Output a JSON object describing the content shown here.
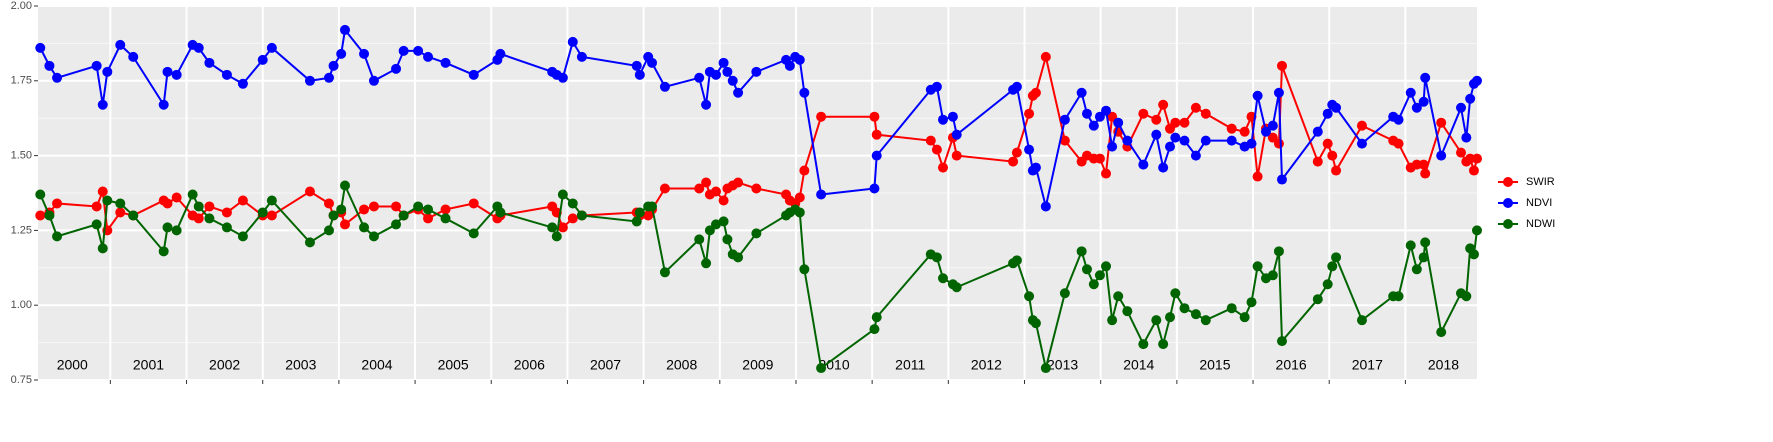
{
  "chart_data": {
    "type": "line",
    "x": [
      2000.08,
      2000.2,
      2000.3,
      2000.82,
      2000.9,
      2000.96,
      2001.13,
      2001.3,
      2001.7,
      2001.75,
      2001.87,
      2002.08,
      2002.16,
      2002.3,
      2002.53,
      2002.74,
      2003.0,
      2003.12,
      2003.62,
      2003.87,
      2003.93,
      2004.03,
      2004.08,
      2004.33,
      2004.46,
      2004.75,
      2004.85,
      2005.04,
      2005.17,
      2005.4,
      2005.77,
      2006.08,
      2006.12,
      2006.8,
      2006.86,
      2006.94,
      2007.07,
      2007.19,
      2007.91,
      2007.95,
      2008.06,
      2008.11,
      2008.28,
      2008.73,
      2008.82,
      2008.87,
      2008.95,
      2009.05,
      2009.1,
      2009.17,
      2009.24,
      2009.48,
      2009.87,
      2009.92,
      2009.99,
      2010.05,
      2010.11,
      2010.33,
      2011.03,
      2011.06,
      2011.77,
      2011.85,
      2011.93,
      2012.06,
      2012.11,
      2012.85,
      2012.9,
      2013.06,
      2013.11,
      2013.15,
      2013.28,
      2013.53,
      2013.75,
      2013.82,
      2013.91,
      2013.99,
      2014.07,
      2014.15,
      2014.23,
      2014.35,
      2014.56,
      2014.73,
      2014.82,
      2014.91,
      2014.98,
      2015.1,
      2015.25,
      2015.38,
      2015.72,
      2015.89,
      2015.98,
      2016.06,
      2016.17,
      2016.26,
      2016.34,
      2016.38,
      2016.85,
      2016.98,
      2017.04,
      2017.09,
      2017.43,
      2017.84,
      2017.91,
      2018.07,
      2018.15,
      2018.24,
      2018.26,
      2018.47,
      2018.73,
      2018.8,
      2018.85,
      2018.9,
      2018.94
    ],
    "series": [
      {
        "name": "SWIR",
        "color": "#ff0000",
        "values": [
          1.3,
          1.31,
          1.34,
          1.33,
          1.38,
          1.25,
          1.31,
          1.3,
          1.35,
          1.34,
          1.36,
          1.3,
          1.29,
          1.33,
          1.31,
          1.35,
          1.3,
          1.3,
          1.38,
          1.34,
          1.3,
          1.31,
          1.27,
          1.32,
          1.33,
          1.33,
          1.3,
          1.32,
          1.29,
          1.32,
          1.34,
          1.29,
          1.3,
          1.33,
          1.31,
          1.26,
          1.29,
          1.3,
          1.31,
          1.3,
          1.3,
          1.32,
          1.39,
          1.39,
          1.41,
          1.37,
          1.38,
          1.35,
          1.39,
          1.4,
          1.41,
          1.39,
          1.37,
          1.35,
          1.34,
          1.36,
          1.45,
          1.63,
          1.63,
          1.57,
          1.55,
          1.52,
          1.46,
          1.56,
          1.5,
          1.48,
          1.51,
          1.64,
          1.7,
          1.71,
          1.83,
          1.55,
          1.48,
          1.5,
          1.49,
          1.49,
          1.44,
          1.63,
          1.58,
          1.53,
          1.64,
          1.62,
          1.67,
          1.59,
          1.61,
          1.61,
          1.66,
          1.64,
          1.59,
          1.58,
          1.63,
          1.43,
          1.59,
          1.56,
          1.54,
          1.8,
          1.48,
          1.54,
          1.5,
          1.45,
          1.6,
          1.55,
          1.54,
          1.46,
          1.47,
          1.47,
          1.44,
          1.61,
          1.51,
          1.48,
          1.49,
          1.45,
          1.49
        ]
      },
      {
        "name": "NDVI",
        "color": "#0000ff",
        "values": [
          1.86,
          1.8,
          1.76,
          1.8,
          1.67,
          1.78,
          1.87,
          1.83,
          1.67,
          1.78,
          1.77,
          1.87,
          1.86,
          1.81,
          1.77,
          1.74,
          1.82,
          1.86,
          1.75,
          1.76,
          1.8,
          1.84,
          1.92,
          1.84,
          1.75,
          1.79,
          1.85,
          1.85,
          1.83,
          1.81,
          1.77,
          1.82,
          1.84,
          1.78,
          1.77,
          1.76,
          1.88,
          1.83,
          1.8,
          1.77,
          1.83,
          1.81,
          1.73,
          1.76,
          1.67,
          1.78,
          1.77,
          1.81,
          1.78,
          1.75,
          1.71,
          1.78,
          1.82,
          1.8,
          1.83,
          1.82,
          1.71,
          1.37,
          1.39,
          1.5,
          1.72,
          1.73,
          1.62,
          1.63,
          1.57,
          1.72,
          1.73,
          1.52,
          1.45,
          1.46,
          1.33,
          1.62,
          1.71,
          1.64,
          1.6,
          1.63,
          1.65,
          1.53,
          1.61,
          1.55,
          1.47,
          1.57,
          1.46,
          1.53,
          1.56,
          1.55,
          1.5,
          1.55,
          1.55,
          1.53,
          1.54,
          1.7,
          1.58,
          1.6,
          1.71,
          1.42,
          1.58,
          1.64,
          1.67,
          1.66,
          1.54,
          1.63,
          1.62,
          1.71,
          1.66,
          1.68,
          1.76,
          1.5,
          1.66,
          1.56,
          1.69,
          1.74,
          1.75
        ]
      },
      {
        "name": "NDWI",
        "color": "#006400",
        "values": [
          1.37,
          1.3,
          1.23,
          1.27,
          1.19,
          1.35,
          1.34,
          1.3,
          1.18,
          1.26,
          1.25,
          1.37,
          1.33,
          1.29,
          1.26,
          1.23,
          1.31,
          1.35,
          1.21,
          1.25,
          1.3,
          1.32,
          1.4,
          1.26,
          1.23,
          1.27,
          1.3,
          1.33,
          1.32,
          1.29,
          1.24,
          1.33,
          1.31,
          1.26,
          1.23,
          1.37,
          1.34,
          1.3,
          1.28,
          1.31,
          1.33,
          1.33,
          1.11,
          1.22,
          1.14,
          1.25,
          1.27,
          1.28,
          1.22,
          1.17,
          1.16,
          1.24,
          1.3,
          1.31,
          1.32,
          1.31,
          1.12,
          0.79,
          0.92,
          0.96,
          1.17,
          1.16,
          1.09,
          1.07,
          1.06,
          1.14,
          1.15,
          1.03,
          0.95,
          0.94,
          0.79,
          1.04,
          1.18,
          1.12,
          1.07,
          1.1,
          1.13,
          0.95,
          1.03,
          0.98,
          0.87,
          0.95,
          0.87,
          0.96,
          1.04,
          0.99,
          0.97,
          0.95,
          0.99,
          0.96,
          1.01,
          1.13,
          1.09,
          1.1,
          1.18,
          0.88,
          1.02,
          1.07,
          1.13,
          1.16,
          0.95,
          1.03,
          1.03,
          1.2,
          1.12,
          1.16,
          1.21,
          0.91,
          1.04,
          1.03,
          1.19,
          1.17,
          1.25
        ]
      }
    ],
    "xlim": [
      2000.05,
      2018.94
    ],
    "xticks": [
      2001,
      2002,
      2003,
      2004,
      2005,
      2006,
      2007,
      2008,
      2009,
      2010,
      2011,
      2012,
      2013,
      2014,
      2015,
      2016,
      2017,
      2018
    ],
    "year_labels": [
      {
        "value": 2000.5,
        "label": "2000"
      },
      {
        "value": 2001.5,
        "label": "2001"
      },
      {
        "value": 2002.5,
        "label": "2002"
      },
      {
        "value": 2003.5,
        "label": "2003"
      },
      {
        "value": 2004.5,
        "label": "2004"
      },
      {
        "value": 2005.5,
        "label": "2005"
      },
      {
        "value": 2006.5,
        "label": "2006"
      },
      {
        "value": 2007.5,
        "label": "2007"
      },
      {
        "value": 2008.5,
        "label": "2008"
      },
      {
        "value": 2009.5,
        "label": "2009"
      },
      {
        "value": 2010.5,
        "label": "2010"
      },
      {
        "value": 2011.5,
        "label": "2011"
      },
      {
        "value": 2012.5,
        "label": "2012"
      },
      {
        "value": 2013.5,
        "label": "2013"
      },
      {
        "value": 2014.5,
        "label": "2014"
      },
      {
        "value": 2015.5,
        "label": "2015"
      },
      {
        "value": 2016.5,
        "label": "2016"
      },
      {
        "value": 2017.5,
        "label": "2017"
      },
      {
        "value": 2018.5,
        "label": "2018"
      }
    ],
    "ylim": [
      0.75,
      2.0
    ],
    "yticks": [
      0.75,
      {
        "value": 1.0,
        "label": "1.00"
      },
      1.25,
      {
        "value": 1.5,
        "label": "1.50"
      },
      1.75,
      {
        "value": 2.0,
        "label": "2.00"
      }
    ],
    "grid": true,
    "legend": "right"
  }
}
